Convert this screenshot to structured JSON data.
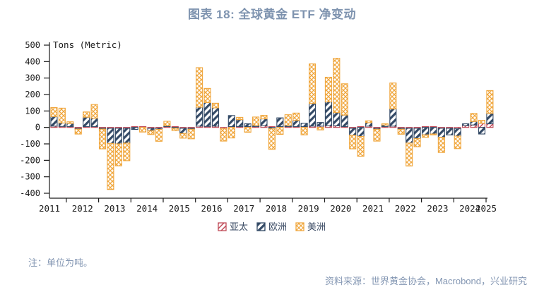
{
  "note": "注：单位为吨。",
  "source": "资料来源：世界黄金协会，Macrobond，兴业研究",
  "chart_data": {
    "type": "bar",
    "stacked": true,
    "title": "图表 18: 全球黄金 ETF 净变动",
    "unit_label": "Tons (Metric)",
    "ylim": [
      -400,
      500
    ],
    "yticks": [
      500,
      400,
      300,
      200,
      100,
      0,
      -100,
      -200,
      -300,
      -400
    ],
    "x_years": [
      "2011",
      "2012",
      "2013",
      "2014",
      "2015",
      "2016",
      "2017",
      "2018",
      "2019",
      "2020",
      "2021",
      "2022",
      "2023",
      "2024",
      "2025"
    ],
    "grid": false,
    "legend_position": "bottom",
    "quarters": [
      "2011Q3",
      "2011Q4",
      "2012Q1",
      "2012Q2",
      "2012Q3",
      "2012Q4",
      "2013Q1",
      "2013Q2",
      "2013Q3",
      "2013Q4",
      "2014Q1",
      "2014Q2",
      "2014Q3",
      "2014Q4",
      "2015Q1",
      "2015Q2",
      "2015Q3",
      "2015Q4",
      "2016Q1",
      "2016Q2",
      "2016Q3",
      "2016Q4",
      "2017Q1",
      "2017Q2",
      "2017Q3",
      "2017Q4",
      "2018Q1",
      "2018Q2",
      "2018Q3",
      "2018Q4",
      "2019Q1",
      "2019Q2",
      "2019Q3",
      "2019Q4",
      "2020Q1",
      "2020Q2",
      "2020Q3",
      "2020Q4",
      "2021Q1",
      "2021Q2",
      "2021Q3",
      "2021Q4",
      "2022Q1",
      "2022Q2",
      "2022Q3",
      "2022Q4",
      "2023Q1",
      "2023Q2",
      "2023Q3",
      "2023Q4",
      "2024Q1",
      "2024Q2",
      "2024Q3",
      "2024Q4",
      "2025Q1"
    ],
    "series": [
      {
        "name": "亚太",
        "color": "#C04A58",
        "hatch": "diag",
        "values": [
          8,
          6,
          2,
          -2,
          4,
          4,
          -5,
          -3,
          -2,
          -3,
          5,
          3,
          -2,
          -2,
          3,
          3,
          -2,
          -2,
          8,
          6,
          8,
          -7,
          4,
          3,
          2,
          4,
          10,
          5,
          4,
          3,
          4,
          4,
          8,
          8,
          10,
          10,
          5,
          -5,
          5,
          8,
          -2,
          3,
          8,
          -4,
          -4,
          -3,
          5,
          5,
          -3,
          -4,
          -8,
          11,
          15,
          25,
          22
        ]
      },
      {
        "name": "欧洲",
        "color": "#344A66",
        "hatch": "diag-bold",
        "values": [
          58,
          21,
          19,
          -2,
          57,
          51,
          -5,
          -92,
          -95,
          -90,
          -12,
          0,
          -15,
          -7,
          4,
          -4,
          -32,
          -6,
          115,
          145,
          111,
          0,
          67,
          42,
          17,
          8,
          42,
          -8,
          53,
          8,
          38,
          20,
          138,
          22,
          145,
          80,
          70,
          -42,
          -55,
          21,
          -6,
          10,
          105,
          -6,
          -90,
          -63,
          -45,
          -40,
          -55,
          -40,
          -45,
          11,
          21,
          -40,
          63
        ]
      },
      {
        "name": "美洲",
        "color": "#F0A73E",
        "hatch": "cross",
        "values": [
          55,
          90,
          10,
          -30,
          32,
          83,
          -120,
          -280,
          -133,
          -107,
          0,
          -28,
          -23,
          -72,
          27,
          -14,
          -28,
          -58,
          240,
          86,
          28,
          -76,
          -64,
          14,
          -29,
          50,
          21,
          -125,
          -42,
          64,
          44,
          -45,
          240,
          -15,
          150,
          330,
          190,
          -83,
          -120,
          11,
          -72,
          7,
          157,
          -30,
          -139,
          -49,
          -15,
          -5,
          -92,
          0,
          -76,
          0,
          49,
          18,
          139
        ]
      }
    ]
  }
}
